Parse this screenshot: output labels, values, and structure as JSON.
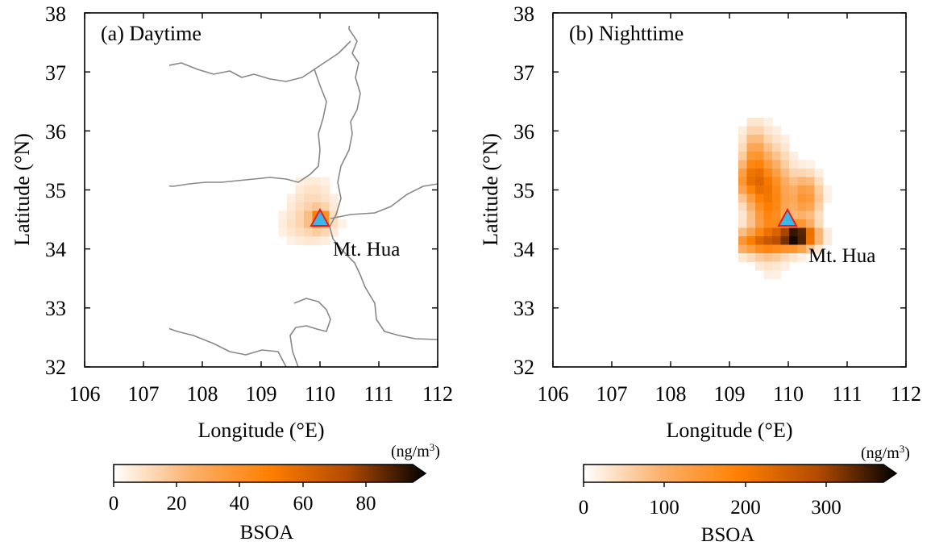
{
  "panels": [
    {
      "label": "(a) Daytime",
      "site_label": "Mt. Hua",
      "xlabel": "Longitude (°E)",
      "ylabel": "Latitude (°N)",
      "xticks": [
        "106",
        "107",
        "108",
        "109",
        "110",
        "111",
        "112"
      ],
      "yticks": [
        "32",
        "33",
        "34",
        "35",
        "36",
        "37",
        "38"
      ],
      "colorbar": {
        "title": "BSOA",
        "unit": "(ng/m3)",
        "ticks": [
          "0",
          "20",
          "40",
          "60",
          "80"
        ],
        "range": [
          0,
          95
        ]
      }
    },
    {
      "label": "(b) Nighttime",
      "site_label": "Mt. Hua",
      "xlabel": "Longitude (°E)",
      "ylabel": "Latitude (°N)",
      "xticks": [
        "106",
        "107",
        "108",
        "109",
        "110",
        "111",
        "112"
      ],
      "yticks": [
        "32",
        "33",
        "34",
        "35",
        "36",
        "37",
        "38"
      ],
      "colorbar": {
        "title": "BSOA",
        "unit": "(ng/m3)",
        "ticks": [
          "0",
          "100",
          "200",
          "300"
        ],
        "range": [
          0,
          370
        ]
      }
    }
  ],
  "map_extent": {
    "lon": [
      106,
      112
    ],
    "lat": [
      32,
      38
    ]
  },
  "site": {
    "name": "Mt. Hua",
    "lon": 110.0,
    "lat": 34.5
  },
  "colors": {
    "colormap": [
      "#ffffff",
      "#fbb06a",
      "#ff7f00",
      "#b34a00",
      "#000000"
    ],
    "border": "#888888",
    "marker_fill": "#3cb8e8",
    "marker_edge": "#e02020"
  }
}
